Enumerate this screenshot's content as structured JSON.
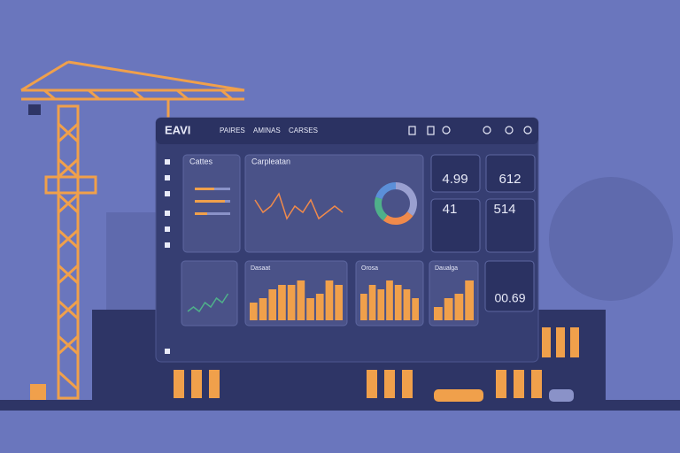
{
  "header": {
    "logo": "EAVI",
    "nav": [
      "PAIRES",
      "AMINAS",
      "CARSES"
    ]
  },
  "cards": [
    {
      "title": "Cattes"
    },
    {
      "title": "Carpleatan"
    }
  ],
  "metrics": [
    "4.99",
    "612",
    "41",
    "514",
    "00.69"
  ],
  "trend": {
    "values": [
      6,
      4,
      5,
      7,
      3,
      5,
      4,
      6,
      3,
      4,
      5,
      4
    ]
  },
  "donut": {
    "values": [
      35,
      25,
      20,
      20
    ],
    "colors": [
      "#9aa0d0",
      "#f08a4b",
      "#4fb08a",
      "#5b8fd8"
    ]
  },
  "mini_line": {
    "values": [
      2,
      3,
      2,
      4,
      3,
      5,
      4,
      6
    ]
  },
  "bar_panels": [
    {
      "title": "Dasaat",
      "bars": [
        4,
        5,
        7,
        8,
        8,
        9,
        5,
        6,
        9,
        8
      ]
    },
    {
      "title": "Orosa",
      "bars": [
        6,
        8,
        7,
        9,
        8,
        7,
        5
      ]
    },
    {
      "title": "Daualga",
      "bars": [
        3,
        5,
        6,
        9
      ]
    }
  ]
}
